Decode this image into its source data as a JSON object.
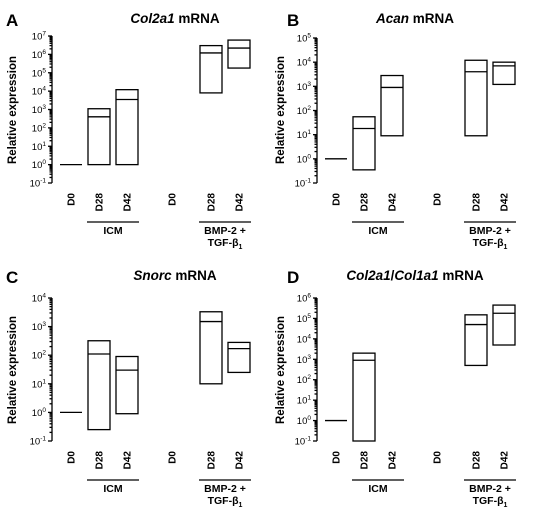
{
  "chart_data": [
    {
      "type": "box",
      "panel": "A",
      "title_parts": [
        {
          "text": "Col2a1",
          "italic": true
        },
        {
          "text": " mRNA",
          "italic": false
        }
      ],
      "ylabel": "Relative expression",
      "yscale": "log",
      "ylim_exp": [
        -1,
        7
      ],
      "categories": [
        "D0",
        "D28",
        "D42",
        "D0",
        "D28",
        "D42"
      ],
      "groups": [
        {
          "label": "ICM",
          "label2": "",
          "sub": "",
          "indices": [
            1,
            2
          ]
        },
        {
          "label": "BMP-2 +",
          "label2": "TGF-β",
          "sub": "1",
          "indices": [
            4,
            5
          ]
        }
      ],
      "boxes": [
        {
          "category": "D0",
          "min": 1,
          "median": 1,
          "max": 1
        },
        {
          "category": "D28",
          "min": 1,
          "median": 400,
          "max": 1100
        },
        {
          "category": "D42",
          "min": 1,
          "median": 3500,
          "max": 12000
        },
        null,
        {
          "category": "D28",
          "min": 8000,
          "median": 1200000,
          "max": 3000000
        },
        {
          "category": "D42",
          "min": 180000,
          "median": 2200000,
          "max": 6000000
        }
      ]
    },
    {
      "type": "box",
      "panel": "B",
      "title_parts": [
        {
          "text": "Acan",
          "italic": true
        },
        {
          "text": " mRNA",
          "italic": false
        }
      ],
      "ylabel": "Relative expression",
      "yscale": "log",
      "ylim_exp": [
        -1,
        5
      ],
      "categories": [
        "D0",
        "D28",
        "D42",
        "D0",
        "D28",
        "D42"
      ],
      "groups": [
        {
          "label": "ICM",
          "label2": "",
          "sub": "",
          "indices": [
            1,
            2
          ]
        },
        {
          "label": "BMP-2 +",
          "label2": "TGF-β",
          "sub": "1",
          "indices": [
            4,
            5
          ]
        }
      ],
      "boxes": [
        {
          "category": "D0",
          "min": 1,
          "median": 1,
          "max": 1
        },
        {
          "category": "D28",
          "min": 0.35,
          "median": 18,
          "max": 55
        },
        {
          "category": "D42",
          "min": 9,
          "median": 900,
          "max": 2800
        },
        null,
        {
          "category": "D28",
          "min": 9,
          "median": 4000,
          "max": 12000
        },
        {
          "category": "D42",
          "min": 1200,
          "median": 7000,
          "max": 10000
        }
      ]
    },
    {
      "type": "box",
      "panel": "C",
      "title_parts": [
        {
          "text": "Snorc",
          "italic": true
        },
        {
          "text": " mRNA",
          "italic": false
        }
      ],
      "ylabel": "Relative expression",
      "yscale": "log",
      "ylim_exp": [
        -1,
        4
      ],
      "categories": [
        "D0",
        "D28",
        "D42",
        "D0",
        "D28",
        "D42"
      ],
      "groups": [
        {
          "label": "ICM",
          "label2": "",
          "sub": "",
          "indices": [
            1,
            2
          ]
        },
        {
          "label": "BMP-2 +",
          "label2": "TGF-β",
          "sub": "1",
          "indices": [
            4,
            5
          ]
        }
      ],
      "boxes": [
        {
          "category": "D0",
          "min": 1,
          "median": 1,
          "max": 1
        },
        {
          "category": "D28",
          "min": 0.25,
          "median": 110,
          "max": 320
        },
        {
          "category": "D42",
          "min": 0.9,
          "median": 30,
          "max": 90
        },
        null,
        {
          "category": "D28",
          "min": 10,
          "median": 1500,
          "max": 3300
        },
        {
          "category": "D42",
          "min": 25,
          "median": 170,
          "max": 280
        }
      ]
    },
    {
      "type": "box",
      "panel": "D",
      "title_parts": [
        {
          "text": "Col2a1",
          "italic": true
        },
        {
          "text": "/",
          "italic": false
        },
        {
          "text": "Col1a1",
          "italic": true
        },
        {
          "text": " mRNA",
          "italic": false
        }
      ],
      "ylabel": "Relative expression",
      "yscale": "log",
      "ylim_exp": [
        -1,
        6
      ],
      "categories": [
        "D0",
        "D28",
        "D42",
        "D0",
        "D28",
        "D42"
      ],
      "groups": [
        {
          "label": "ICM",
          "label2": "",
          "sub": "",
          "indices": [
            1,
            2
          ]
        },
        {
          "label": "BMP-2 +",
          "label2": "TGF-β",
          "sub": "1",
          "indices": [
            4,
            5
          ]
        }
      ],
      "boxes": [
        {
          "category": "D0",
          "min": 1,
          "median": 1,
          "max": 1
        },
        {
          "category": "D28",
          "min": 0.1,
          "median": 900,
          "max": 2000
        },
        null,
        null,
        {
          "category": "D28",
          "min": 500,
          "median": 50000,
          "max": 150000
        },
        {
          "category": "D42",
          "min": 5000,
          "median": 180000,
          "max": 450000
        }
      ]
    }
  ]
}
